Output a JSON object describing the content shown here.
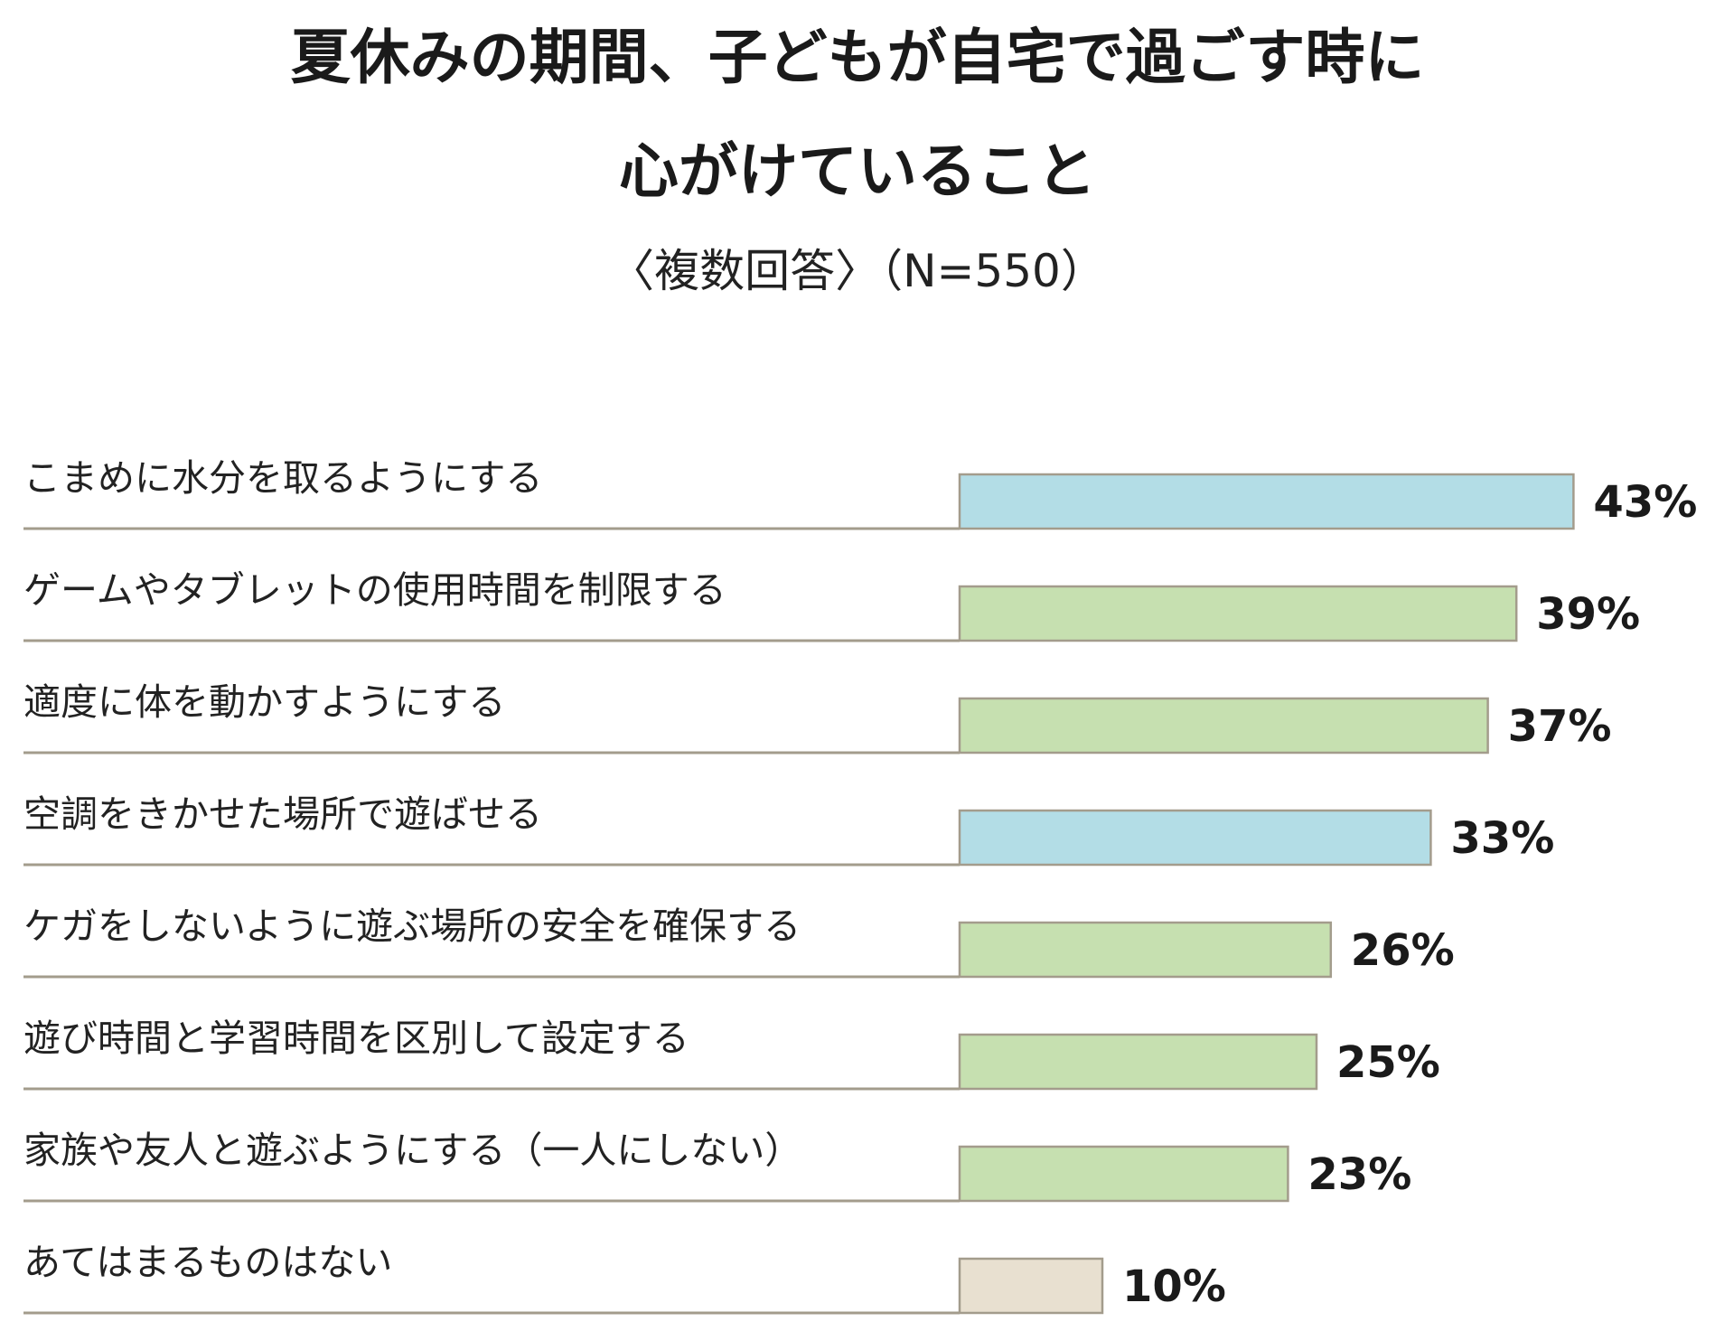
{
  "header": {
    "title_line_1": "夏休みの期間、子どもが自宅で過ごす時に",
    "title_line_2": "心がけていること",
    "subtitle": "〈複数回答〉（N=550）"
  },
  "chart_data": {
    "type": "bar",
    "orientation": "horizontal",
    "title": "夏休みの期間、子どもが自宅で過ごす時に心がけていること",
    "subtitle": "〈複数回答〉（N=550）",
    "xlabel": "",
    "ylabel": "",
    "xlim": [
      0,
      50
    ],
    "grid": false,
    "legend": "none",
    "categories": [
      "こまめに水分を取るようにする",
      "ゲームやタブレットの使用時間を制限する",
      "適度に体を動かすようにする",
      "空調をきかせた場所で遊ばせる",
      "ケガをしないように遊ぶ場所の安全を確保する",
      "遊び時間と学習時間を区別して設定する",
      "家族や友人と遊ぶようにする（一人にしない）",
      "あてはまるものはない"
    ],
    "values": [
      43,
      39,
      37,
      33,
      26,
      25,
      23,
      10
    ],
    "value_labels": [
      "43%",
      "39%",
      "37%",
      "33%",
      "26%",
      "25%",
      "23%",
      "10%"
    ],
    "bar_colors": [
      "#b3dde6",
      "#c6e0b0",
      "#c6e0b0",
      "#b3dde6",
      "#c6e0b0",
      "#c6e0b0",
      "#c6e0b0",
      "#e8e0d0"
    ],
    "bar_border_color": "#a39c8c",
    "separator_color": "#a39c8c"
  }
}
